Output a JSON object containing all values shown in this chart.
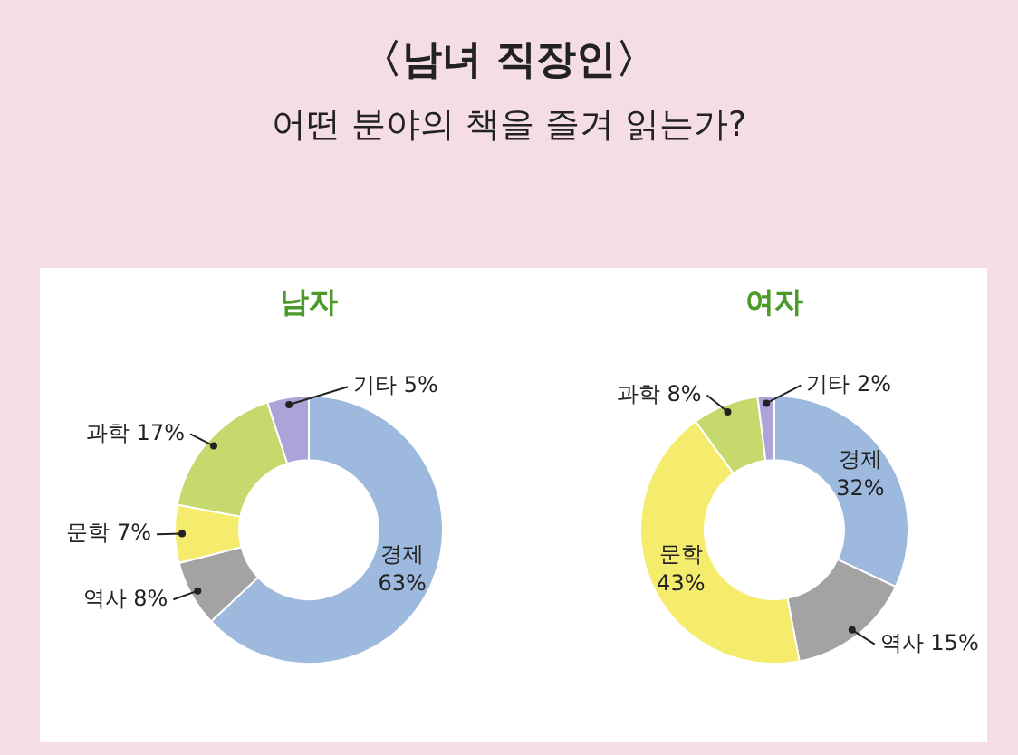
{
  "chart_data": [
    {
      "type": "other",
      "title": "〈남녀 직장인〉",
      "subtitle": "어떤 분야의 책을 즐겨 읽는가?"
    },
    {
      "type": "donut",
      "title": "남자",
      "categories": [
        "경제",
        "역사",
        "문학",
        "과학",
        "기타"
      ],
      "values": [
        63,
        8,
        7,
        17,
        5
      ],
      "colors": [
        "#9db9de",
        "#a3a3a3",
        "#f5ec6e",
        "#c6d96c",
        "#aaa4d8"
      ],
      "value_labels": [
        "63%",
        "8%",
        "7%",
        "17%",
        "5%"
      ]
    },
    {
      "type": "donut",
      "title": "여자",
      "categories": [
        "경제",
        "역사",
        "문학",
        "과학",
        "기타"
      ],
      "values": [
        32,
        15,
        43,
        8,
        2
      ],
      "colors": [
        "#9db9de",
        "#a3a3a3",
        "#f5ec6e",
        "#c6d96c",
        "#aaa4d8"
      ],
      "value_labels": [
        "32%",
        "15%",
        "43%",
        "8%",
        "2%"
      ]
    }
  ]
}
